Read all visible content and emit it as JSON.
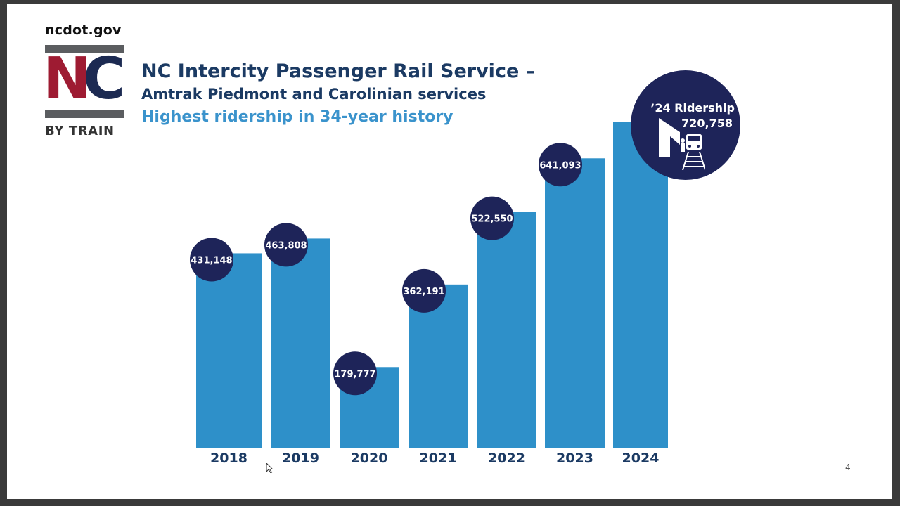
{
  "header": {
    "site": "ncdot.gov",
    "logo_mark_n": "N",
    "logo_mark_c": "C",
    "logo_sub": "BY TRAIN",
    "title": "NC Intercity Passenger Rail Service –",
    "subtitle": "Amtrak Piedmont and Carolinian services",
    "tagline": "Highest ridership in 34-year history"
  },
  "callout": {
    "label": "’24 Ridership",
    "value": "720,758",
    "icon": "train-station-icon"
  },
  "page_number": "4",
  "colors": {
    "bar": "#2e90c9",
    "bubble": "#1e2459",
    "title": "#1b3a63",
    "tagline": "#3a93cc",
    "logo_red": "#9e1b32",
    "logo_navy": "#1c2a52",
    "logo_gray": "#5b5d60"
  },
  "chart_data": {
    "type": "bar",
    "categories": [
      "2018",
      "2019",
      "2020",
      "2021",
      "2022",
      "2023",
      "2024"
    ],
    "values": [
      431148,
      463808,
      179777,
      362191,
      522550,
      641093,
      720758
    ],
    "labels": [
      "431,148",
      "463,808",
      "179,777",
      "362,191",
      "522,550",
      "641,093",
      ""
    ],
    "title": "",
    "xlabel": "",
    "ylabel": "",
    "ylim": [
      0,
      720758
    ],
    "grid": false,
    "legend": "none"
  }
}
